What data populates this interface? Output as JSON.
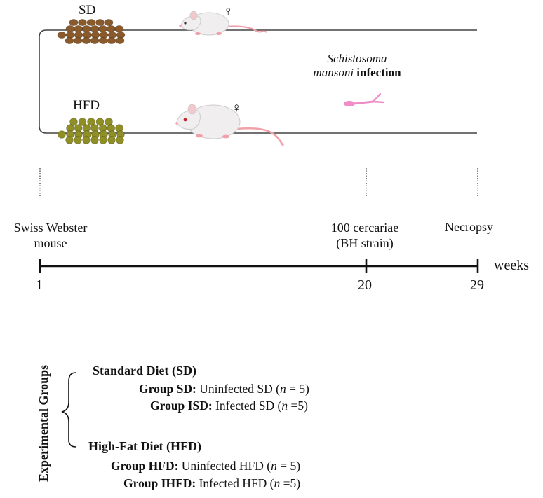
{
  "diets": {
    "sd_label": "SD",
    "hfd_label": "HFD",
    "female_symbol": "♀"
  },
  "infection": {
    "genus": "Schistosoma",
    "species": "mansoni",
    "suffix": "infection"
  },
  "milestones": {
    "start": [
      "Swiss Webster",
      "mouse"
    ],
    "infection": [
      "100 cercariae",
      "(BH strain)"
    ],
    "end": "Necropsy"
  },
  "timeline": {
    "unit": "weeks",
    "ticks": [
      "1",
      "20",
      "29"
    ]
  },
  "groups": {
    "title": "Experimental Groups",
    "standard_heading": "Standard Diet (SD)",
    "highfat_heading": "High-Fat Diet (HFD)",
    "sd": {
      "name": "Group SD:",
      "desc": "Uninfected SD (",
      "n_var": "n",
      "n_val": " = 5)"
    },
    "isd": {
      "name": "Group ISD:",
      "desc": " Infected SD (",
      "n_var": "n",
      "n_val": " =5)"
    },
    "hfd": {
      "name": "Group HFD:",
      "desc": "Uninfected HFD (",
      "n_var": "n",
      "n_val": " = 5)"
    },
    "ihfd": {
      "name": "Group IHFD:",
      "desc": " Infected HFD (",
      "n_var": "n",
      "n_val": " =5)"
    }
  },
  "colors": {
    "sd_pellet": "#8a5a2b",
    "hfd_pellet": "#8f8f25",
    "mouse_body": "#f0eeee",
    "mouse_pink": "#f0a0a8",
    "cercaria": "#f08cc8",
    "line": "#111111"
  }
}
